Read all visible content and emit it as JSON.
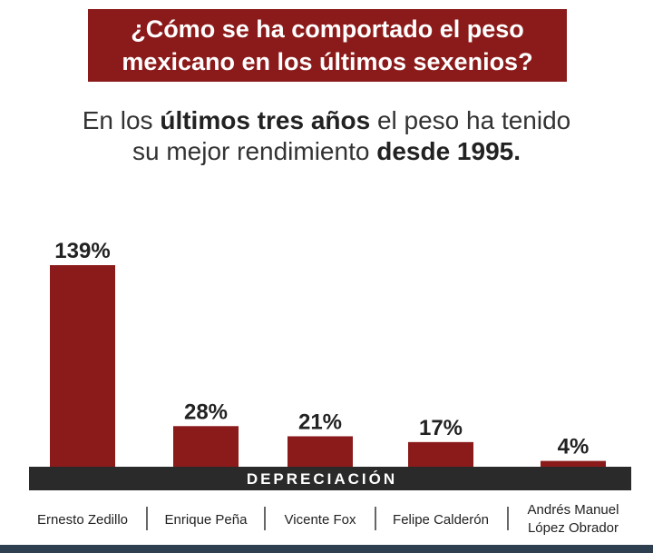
{
  "header": {
    "title_line1": "¿Cómo se ha comportado el peso",
    "title_line2": "mexicano en los últimos sexenios?",
    "subtitle_part1": "En los ",
    "subtitle_bold1": "últimos tres años",
    "subtitle_part2": " el peso ha tenido",
    "subtitle_part3": "su mejor rendimiento ",
    "subtitle_bold2": "desde 1995."
  },
  "chart_data": {
    "type": "bar",
    "title": "¿Cómo se ha comportado el peso mexicano en los últimos sexenios?",
    "xlabel": "DEPRECIACIÓN",
    "ylabel": "",
    "ylim": [
      0,
      139
    ],
    "grid": false,
    "categories": [
      [
        "Ernesto Zedillo"
      ],
      [
        "Enrique Peña"
      ],
      [
        "Vicente Fox"
      ],
      [
        "Felipe Calderón"
      ],
      [
        "Andrés Manuel",
        "López Obrador"
      ]
    ],
    "values": [
      139,
      28,
      21,
      17,
      4
    ],
    "value_labels": [
      "139%",
      "28%",
      "21%",
      "17%",
      "4%"
    ],
    "unit": "%"
  },
  "colors": {
    "bar": "#8b1a1a",
    "axis_band": "#2a2a2a",
    "axis_text": "#ffffff",
    "label_text": "#222222",
    "divider": "#333333"
  }
}
